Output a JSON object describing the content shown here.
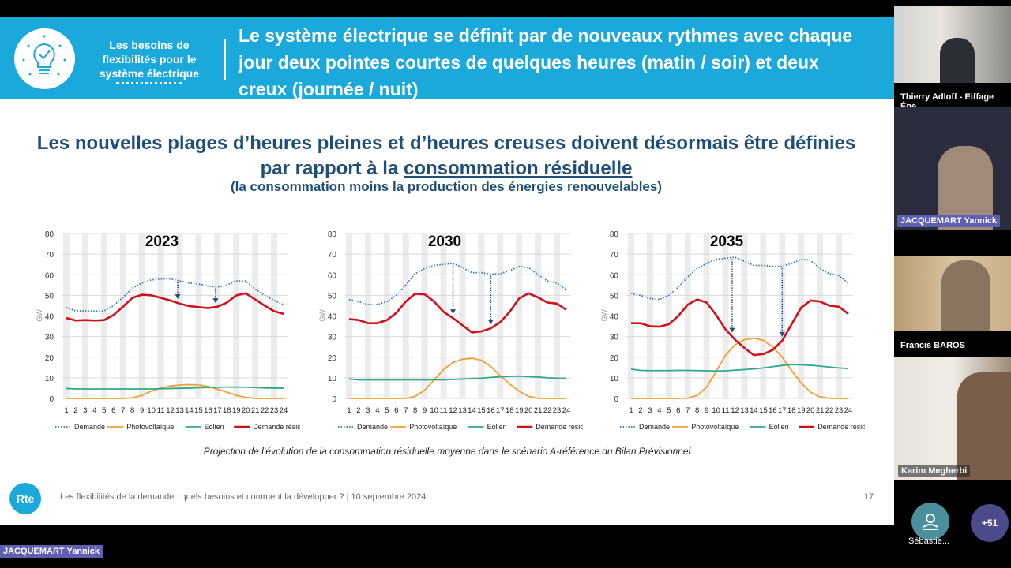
{
  "slide": {
    "banner_left": "Les besoins de flexibilités pour le système électrique",
    "banner_title": "Le système électrique se définit par de nouveaux rythmes avec chaque jour deux pointes courtes de quelques heures (matin / soir) et deux creux (journée / nuit)",
    "headline_part1": "Les nouvelles plages d’heures pleines et d’heures creuses doivent désormais être définies par rapport à la ",
    "headline_underlined": "consommation résiduelle",
    "subheadline": "(la consommation moins la production des énergies renouvelables)",
    "caption": "Projection de l’évolution de la consommation résiduelle moyenne dans le scénario A-référence du Bilan Prévisionnel",
    "logo_text": "Rte",
    "footer_text": "Les flexibilités de la demande : quels besoins et comment la développer ?",
    "footer_sep": "|",
    "footer_date": "10 septembre 2024",
    "page_number": "17"
  },
  "chart_data": [
    {
      "type": "line",
      "title": "2023",
      "ylabel": "GW",
      "ylim": [
        0,
        80
      ],
      "yticks": [
        0,
        10,
        20,
        30,
        40,
        50,
        60,
        70,
        80
      ],
      "x": [
        1,
        2,
        3,
        4,
        5,
        6,
        7,
        8,
        9,
        10,
        11,
        12,
        13,
        14,
        15,
        16,
        17,
        18,
        19,
        20,
        21,
        22,
        23,
        24
      ],
      "arrows_at_hours": [
        12.8,
        16.8
      ],
      "series": [
        {
          "name": "Demande",
          "color": "#2e75b6",
          "style": "dotted",
          "values": [
            44,
            42.5,
            42.5,
            42.3,
            42.5,
            45,
            49,
            53.5,
            56,
            57.5,
            58,
            58,
            57,
            56,
            55.5,
            54.5,
            54,
            55,
            57,
            57,
            53,
            50,
            47.5,
            45.5
          ]
        },
        {
          "name": "Photovoltaïque",
          "color": "#f0a030",
          "style": "solid",
          "values": [
            0,
            0,
            0,
            0,
            0,
            0,
            0,
            0.3,
            1.5,
            3.5,
            5,
            6,
            6.5,
            6.7,
            6.5,
            5.8,
            4.5,
            3,
            1.5,
            0.5,
            0,
            0,
            0,
            0
          ]
        },
        {
          "name": "Eolien",
          "color": "#2fa98c",
          "style": "solid",
          "values": [
            4.8,
            4.6,
            4.6,
            4.6,
            4.6,
            4.6,
            4.6,
            4.6,
            4.6,
            4.6,
            4.7,
            4.8,
            4.9,
            5,
            5.2,
            5.3,
            5.4,
            5.5,
            5.5,
            5.4,
            5.3,
            5.1,
            5,
            5
          ]
        },
        {
          "name": "Demande résiduelle",
          "color": "#d0101a",
          "style": "thick",
          "values": [
            39,
            37.8,
            38,
            37.8,
            38,
            40.5,
            44.5,
            48.8,
            50.3,
            50,
            48.8,
            47.5,
            46,
            44.8,
            44.3,
            43.8,
            44.5,
            46.5,
            50,
            51,
            48,
            45,
            42.3,
            41
          ]
        }
      ]
    },
    {
      "type": "line",
      "title": "2030",
      "ylabel": "GW",
      "ylim": [
        0,
        80
      ],
      "yticks": [
        0,
        10,
        20,
        30,
        40,
        50,
        60,
        70,
        80
      ],
      "x": [
        1,
        2,
        3,
        4,
        5,
        6,
        7,
        8,
        9,
        10,
        11,
        12,
        13,
        14,
        15,
        16,
        17,
        18,
        19,
        20,
        21,
        22,
        23,
        24
      ],
      "arrows_at_hours": [
        12,
        16
      ],
      "series": [
        {
          "name": "Demande",
          "color": "#2e75b6",
          "style": "dotted",
          "values": [
            48,
            47,
            45.5,
            45.5,
            47,
            50,
            55,
            60.5,
            63,
            64.5,
            65,
            65.5,
            63.5,
            61,
            61,
            60.3,
            60.5,
            62,
            64,
            63.5,
            60,
            57,
            56,
            52.5
          ]
        },
        {
          "name": "Photovoltaïque",
          "color": "#f0a030",
          "style": "solid",
          "values": [
            0,
            0,
            0,
            0,
            0,
            0,
            0,
            1,
            4,
            9,
            14,
            17.5,
            19,
            19.5,
            18.5,
            15.5,
            11,
            7,
            3.5,
            1,
            0,
            0,
            0,
            0
          ]
        },
        {
          "name": "Eolien",
          "color": "#2fa98c",
          "style": "solid",
          "values": [
            9.5,
            9,
            9,
            9,
            9,
            9,
            9,
            9,
            9,
            9,
            9,
            9.2,
            9.4,
            9.6,
            9.8,
            10.2,
            10.5,
            10.7,
            10.8,
            10.6,
            10.4,
            10,
            9.8,
            9.7
          ]
        },
        {
          "name": "Demande résiduelle",
          "color": "#d0101a",
          "style": "thick",
          "values": [
            38.5,
            38,
            36.5,
            36.5,
            38,
            41.5,
            47,
            50.8,
            50.5,
            47,
            42,
            39,
            35.5,
            32,
            32.5,
            34,
            37,
            42,
            48.5,
            51,
            49,
            46.5,
            46,
            43
          ]
        }
      ]
    },
    {
      "type": "line",
      "title": "2035",
      "ylabel": "GW",
      "ylim": [
        0,
        80
      ],
      "yticks": [
        0,
        10,
        20,
        30,
        40,
        50,
        60,
        70,
        80
      ],
      "x": [
        1,
        2,
        3,
        4,
        5,
        6,
        7,
        8,
        9,
        10,
        11,
        12,
        13,
        14,
        15,
        16,
        17,
        18,
        19,
        20,
        21,
        22,
        23,
        24
      ],
      "arrows_at_hours": [
        11.7,
        17
      ],
      "series": [
        {
          "name": "Demande",
          "color": "#2e75b6",
          "style": "dotted",
          "values": [
            51,
            50,
            48.5,
            48,
            50,
            54,
            59,
            63,
            65.5,
            67.5,
            68,
            68.5,
            66.5,
            64.5,
            64.5,
            64,
            64,
            65.5,
            67.5,
            67,
            63,
            60.5,
            59.5,
            56
          ]
        },
        {
          "name": "Photovoltaïque",
          "color": "#f0a030",
          "style": "solid",
          "values": [
            0,
            0,
            0,
            0,
            0,
            0,
            0.2,
            1.5,
            5.5,
            13,
            21,
            26,
            28.5,
            29.2,
            28.2,
            25,
            20,
            13.5,
            7.5,
            3,
            0.8,
            0,
            0,
            0
          ]
        },
        {
          "name": "Eolien",
          "color": "#2fa98c",
          "style": "solid",
          "values": [
            14.2,
            13.6,
            13.5,
            13.5,
            13.5,
            13.6,
            13.6,
            13.5,
            13.4,
            13.3,
            13.4,
            13.7,
            14,
            14.3,
            14.8,
            15.4,
            16,
            16.4,
            16.3,
            16.1,
            15.7,
            15.2,
            14.8,
            14.5
          ]
        },
        {
          "name": "Demande résiduelle",
          "color": "#d0101a",
          "style": "thick",
          "values": [
            36.5,
            36.5,
            35,
            34.8,
            36,
            40,
            45.5,
            48,
            46.5,
            40.5,
            33.5,
            28.5,
            24.5,
            21,
            21.5,
            23.5,
            28,
            36,
            44,
            47.5,
            47,
            45,
            44.5,
            41
          ]
        }
      ]
    }
  ],
  "call": {
    "participants": [
      {
        "name": "Thierry Adloff - Eiffage Éne..."
      },
      {
        "name": "JACQUEMART Yannick"
      },
      {
        "name": "Francis BAROS"
      },
      {
        "name": "Karim Megherbi"
      }
    ],
    "extra_participant": "Sébastie...",
    "more_count": "+51",
    "speaker_tag": "JACQUEMART Yannick",
    "colors": {
      "tag": "#5e5fb0",
      "avatar": "#4a8f9c",
      "more": "#4b4a8a"
    }
  }
}
